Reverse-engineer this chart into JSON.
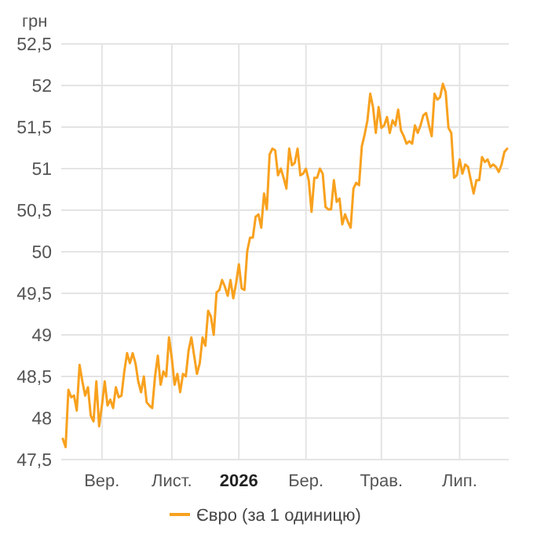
{
  "chart_data": {
    "type": "line",
    "ylabel": "грн",
    "ylim": [
      47.5,
      52.5
    ],
    "yticks": [
      {
        "value": 47.5,
        "label": "47,5"
      },
      {
        "value": 48,
        "label": "48"
      },
      {
        "value": 48.5,
        "label": "48,5"
      },
      {
        "value": 49,
        "label": "49"
      },
      {
        "value": 49.5,
        "label": "49,5"
      },
      {
        "value": 50,
        "label": "50"
      },
      {
        "value": 50.5,
        "label": "50,5"
      },
      {
        "value": 51,
        "label": "51"
      },
      {
        "value": 51.5,
        "label": "51,5"
      },
      {
        "value": 52,
        "label": "52"
      },
      {
        "value": 52.5,
        "label": "52,5"
      }
    ],
    "grid": true,
    "legend": "bottom",
    "marker": "none",
    "line_style": "solid",
    "categories": [
      null,
      null,
      null,
      null,
      null,
      null,
      null,
      null,
      null,
      null,
      null,
      null,
      null,
      null,
      "Вер.",
      null,
      null,
      null,
      null,
      null,
      null,
      null,
      null,
      null,
      null,
      null,
      null,
      null,
      null,
      null,
      null,
      null,
      null,
      null,
      null,
      null,
      null,
      null,
      null,
      "Лист.",
      null,
      null,
      null,
      null,
      null,
      null,
      null,
      null,
      null,
      null,
      null,
      null,
      null,
      null,
      null,
      null,
      null,
      null,
      null,
      null,
      null,
      null,
      null,
      "2026",
      null,
      null,
      null,
      null,
      null,
      null,
      null,
      null,
      null,
      null,
      null,
      null,
      null,
      null,
      null,
      null,
      null,
      null,
      null,
      null,
      null,
      null,
      null,
      "Бер.",
      null,
      null,
      null,
      null,
      null,
      null,
      null,
      null,
      null,
      null,
      null,
      null,
      null,
      null,
      null,
      null,
      null,
      null,
      null,
      null,
      null,
      null,
      null,
      null,
      null,
      null,
      "Трав.",
      null,
      null,
      null,
      null,
      null,
      null,
      null,
      null,
      null,
      null,
      null,
      null,
      null,
      null,
      null,
      null,
      null,
      null,
      null,
      null,
      null,
      null,
      null,
      null,
      null,
      null,
      null,
      "Лип.",
      null,
      null,
      null,
      null,
      null,
      null,
      null,
      null,
      null,
      null,
      null,
      null,
      null,
      null,
      null,
      null,
      null
    ],
    "series": [
      {
        "name": "Євро (за 1 одиницю)",
        "color": "#f8a11e",
        "values": [
          47.75,
          47.65,
          48.34,
          48.25,
          48.27,
          48.09,
          48.64,
          48.44,
          48.27,
          48.37,
          48.03,
          47.96,
          48.44,
          47.9,
          48.15,
          48.44,
          48.15,
          48.22,
          48.12,
          48.37,
          48.25,
          48.27,
          48.56,
          48.78,
          48.66,
          48.78,
          48.66,
          48.44,
          48.31,
          48.5,
          48.19,
          48.15,
          48.12,
          48.5,
          48.75,
          48.4,
          48.56,
          48.5,
          48.97,
          48.72,
          48.4,
          48.53,
          48.31,
          48.53,
          48.5,
          48.81,
          48.97,
          48.75,
          48.53,
          48.66,
          48.97,
          48.87,
          49.29,
          49.22,
          49.0,
          49.51,
          49.54,
          49.66,
          49.58,
          49.47,
          49.66,
          49.44,
          49.62,
          49.85,
          49.56,
          49.54,
          50.01,
          50.17,
          50.17,
          50.42,
          50.45,
          50.29,
          50.7,
          50.51,
          51.17,
          51.24,
          51.22,
          50.92,
          51.0,
          50.89,
          50.76,
          51.24,
          51.04,
          51.07,
          51.24,
          50.92,
          50.94,
          51.0,
          50.86,
          50.48,
          50.89,
          50.89,
          51.0,
          50.94,
          50.54,
          50.51,
          50.51,
          50.86,
          50.6,
          50.64,
          50.33,
          50.45,
          50.36,
          50.29,
          50.76,
          50.83,
          50.8,
          51.27,
          51.41,
          51.58,
          51.9,
          51.74,
          51.43,
          51.74,
          51.49,
          51.52,
          51.62,
          51.43,
          51.58,
          51.52,
          51.71,
          51.46,
          51.39,
          51.3,
          51.33,
          51.3,
          51.52,
          51.43,
          51.52,
          51.64,
          51.67,
          51.52,
          51.39,
          51.9,
          51.83,
          51.86,
          52.02,
          51.92,
          51.49,
          51.43,
          50.89,
          50.92,
          51.11,
          50.94,
          51.05,
          51.02,
          50.86,
          50.7,
          50.86,
          50.86,
          51.14,
          51.08,
          51.11,
          51.02,
          51.05,
          51.02,
          50.96,
          51.05,
          51.2,
          51.24
        ]
      }
    ]
  }
}
